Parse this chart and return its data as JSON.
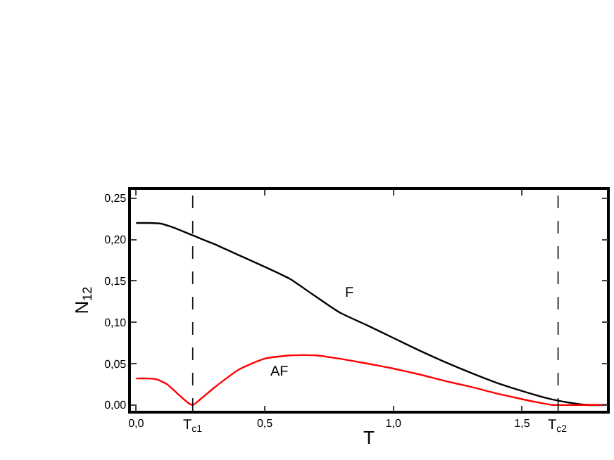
{
  "chart_data": {
    "type": "line",
    "xlabel": "T",
    "ylabel": "N$_{12}$",
    "xlim": [
      -0.02,
      1.83
    ],
    "ylim": [
      -0.007,
      0.26
    ],
    "xticks": [
      {
        "value": 0,
        "label": "0,0"
      },
      {
        "value": 0.5,
        "label": "0,5"
      },
      {
        "value": 1.0,
        "label": "1,0"
      },
      {
        "value": 1.5,
        "label": "1,5"
      }
    ],
    "yticks": [
      {
        "value": 0,
        "label": "0,00"
      },
      {
        "value": 0.05,
        "label": "0,05"
      },
      {
        "value": 0.1,
        "label": "0,10"
      },
      {
        "value": 0.15,
        "label": "0,15"
      },
      {
        "value": 0.2,
        "label": "0,20"
      },
      {
        "value": 0.25,
        "label": "0,25"
      }
    ],
    "series": [
      {
        "name": "F",
        "color": "#000000",
        "x": [
          0,
          0.05,
          0.1,
          0.15,
          0.22,
          0.3,
          0.4,
          0.5,
          0.6,
          0.68,
          0.79,
          0.9,
          1.0,
          1.1,
          1.2,
          1.3,
          1.4,
          1.5,
          1.6,
          1.68,
          1.75,
          1.83
        ],
        "values": [
          0.22,
          0.22,
          0.219,
          0.214,
          0.205,
          0.195,
          0.181,
          0.167,
          0.152,
          0.135,
          0.112,
          0.096,
          0.081,
          0.066,
          0.052,
          0.039,
          0.027,
          0.017,
          0.008,
          0.003,
          0.0,
          0.0
        ]
      },
      {
        "name": "AF",
        "color": "#ff0000",
        "x": [
          0,
          0.05,
          0.08,
          0.12,
          0.16,
          0.2,
          0.22,
          0.25,
          0.3,
          0.35,
          0.4,
          0.5,
          0.6,
          0.7,
          0.79,
          0.9,
          1.0,
          1.1,
          1.2,
          1.3,
          1.4,
          1.5,
          1.58,
          1.62,
          1.7,
          1.83
        ],
        "values": [
          0.032,
          0.032,
          0.031,
          0.025,
          0.014,
          0.003,
          0.0,
          0.007,
          0.02,
          0.032,
          0.043,
          0.056,
          0.06,
          0.06,
          0.056,
          0.05,
          0.044,
          0.037,
          0.029,
          0.022,
          0.014,
          0.007,
          0.002,
          0.0,
          0.0,
          0.0
        ]
      }
    ],
    "ref_lines": [
      {
        "axis": "x",
        "value": 0.22,
        "label": "T$_{c1}$",
        "line_style": "dashed"
      },
      {
        "axis": "x",
        "value": 1.64,
        "label": "T$_{c2}$",
        "line_style": "dashed"
      }
    ],
    "legend": false,
    "marker": "none",
    "line_style": "solid"
  }
}
